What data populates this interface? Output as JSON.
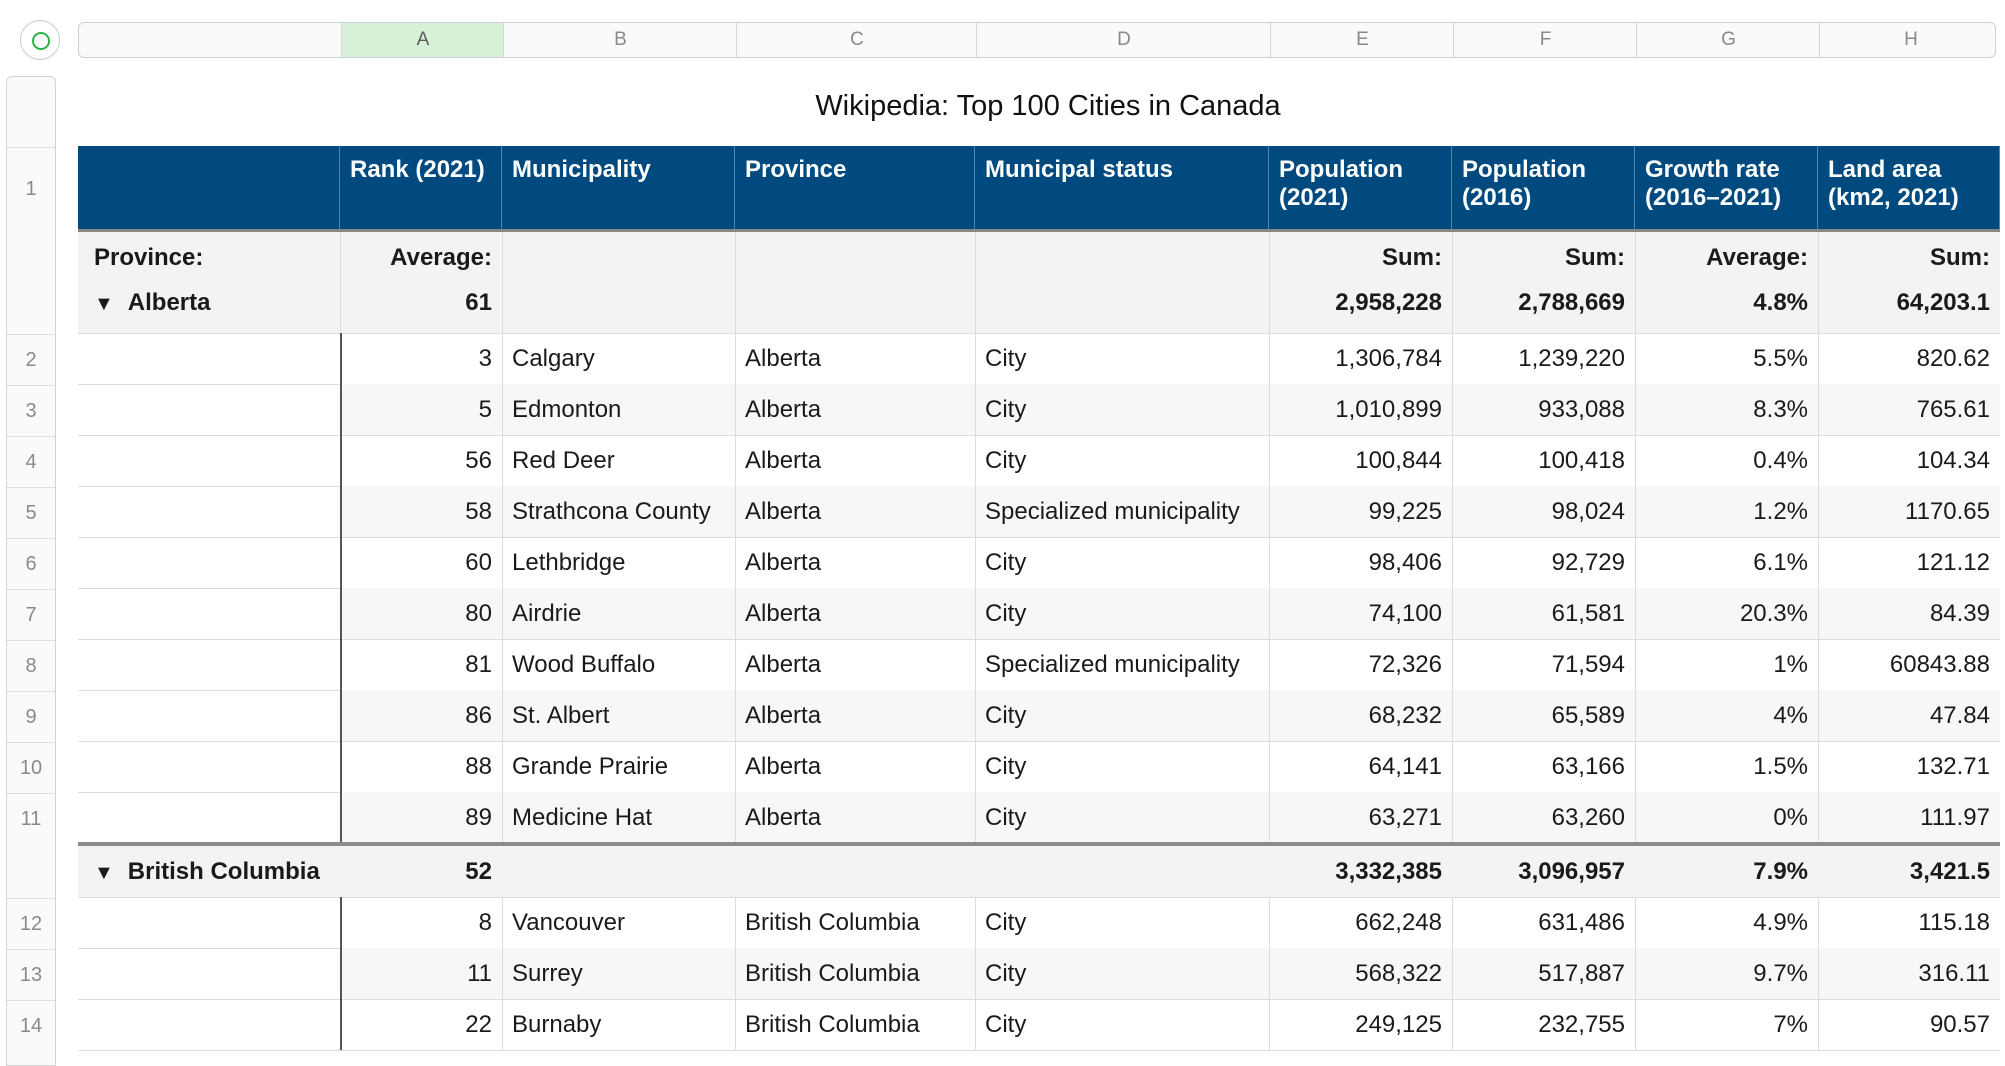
{
  "column_letters": [
    "A",
    "B",
    "C",
    "D",
    "E",
    "F",
    "G",
    "H"
  ],
  "selected_column": "A",
  "row_numbers": [
    "1",
    "2",
    "3",
    "4",
    "5",
    "6",
    "7",
    "8",
    "9",
    "10",
    "11",
    "12",
    "13",
    "14"
  ],
  "table": {
    "title": "Wikipedia: Top 100 Cities in Canada",
    "headers": [
      "",
      "Rank (2021)",
      "Municipality",
      "Province",
      "Municipal status",
      "Population (2021)",
      "Population (2016)",
      "Growth rate (2016–2021)",
      "Land area (km2, 2021)"
    ],
    "summary_labels": {
      "category": "Province:",
      "rank": "Average:",
      "pop2021": "Sum:",
      "pop2016": "Sum:",
      "growth": "Average:",
      "land": "Sum:"
    },
    "groups": [
      {
        "name": "Alberta",
        "rank": "61",
        "pop2021": "2,958,228",
        "pop2016": "2,788,669",
        "growth": "4.8%",
        "land": "64,203.1",
        "rows": [
          [
            "3",
            "Calgary",
            "Alberta",
            "City",
            "1,306,784",
            "1,239,220",
            "5.5%",
            "820.62"
          ],
          [
            "5",
            "Edmonton",
            "Alberta",
            "City",
            "1,010,899",
            "933,088",
            "8.3%",
            "765.61"
          ],
          [
            "56",
            "Red Deer",
            "Alberta",
            "City",
            "100,844",
            "100,418",
            "0.4%",
            "104.34"
          ],
          [
            "58",
            "Strathcona County",
            "Alberta",
            "Specialized municipality",
            "99,225",
            "98,024",
            "1.2%",
            "1170.65"
          ],
          [
            "60",
            "Lethbridge",
            "Alberta",
            "City",
            "98,406",
            "92,729",
            "6.1%",
            "121.12"
          ],
          [
            "80",
            "Airdrie",
            "Alberta",
            "City",
            "74,100",
            "61,581",
            "20.3%",
            "84.39"
          ],
          [
            "81",
            "Wood Buffalo",
            "Alberta",
            "Specialized municipality",
            "72,326",
            "71,594",
            "1%",
            "60843.88"
          ],
          [
            "86",
            "St. Albert",
            "Alberta",
            "City",
            "68,232",
            "65,589",
            "4%",
            "47.84"
          ],
          [
            "88",
            "Grande Prairie",
            "Alberta",
            "City",
            "64,141",
            "63,166",
            "1.5%",
            "132.71"
          ],
          [
            "89",
            "Medicine Hat",
            "Alberta",
            "City",
            "63,271",
            "63,260",
            "0%",
            "111.97"
          ]
        ]
      },
      {
        "name": "British Columbia",
        "rank": "52",
        "pop2021": "3,332,385",
        "pop2016": "3,096,957",
        "growth": "7.9%",
        "land": "3,421.5",
        "rows": [
          [
            "8",
            "Vancouver",
            "British Columbia",
            "City",
            "662,248",
            "631,486",
            "4.9%",
            "115.18"
          ],
          [
            "11",
            "Surrey",
            "British Columbia",
            "City",
            "568,322",
            "517,887",
            "9.7%",
            "316.11"
          ],
          [
            "22",
            "Burnaby",
            "British Columbia",
            "City",
            "249,125",
            "232,755",
            "7%",
            "90.57"
          ]
        ]
      }
    ]
  },
  "icons": {
    "corner": "circle-icon",
    "disclosure": "triangle-down-icon"
  },
  "colors": {
    "header_bg": "#004a80",
    "selected_col": "#d6f3d9",
    "accent_green": "#2bb24c"
  }
}
